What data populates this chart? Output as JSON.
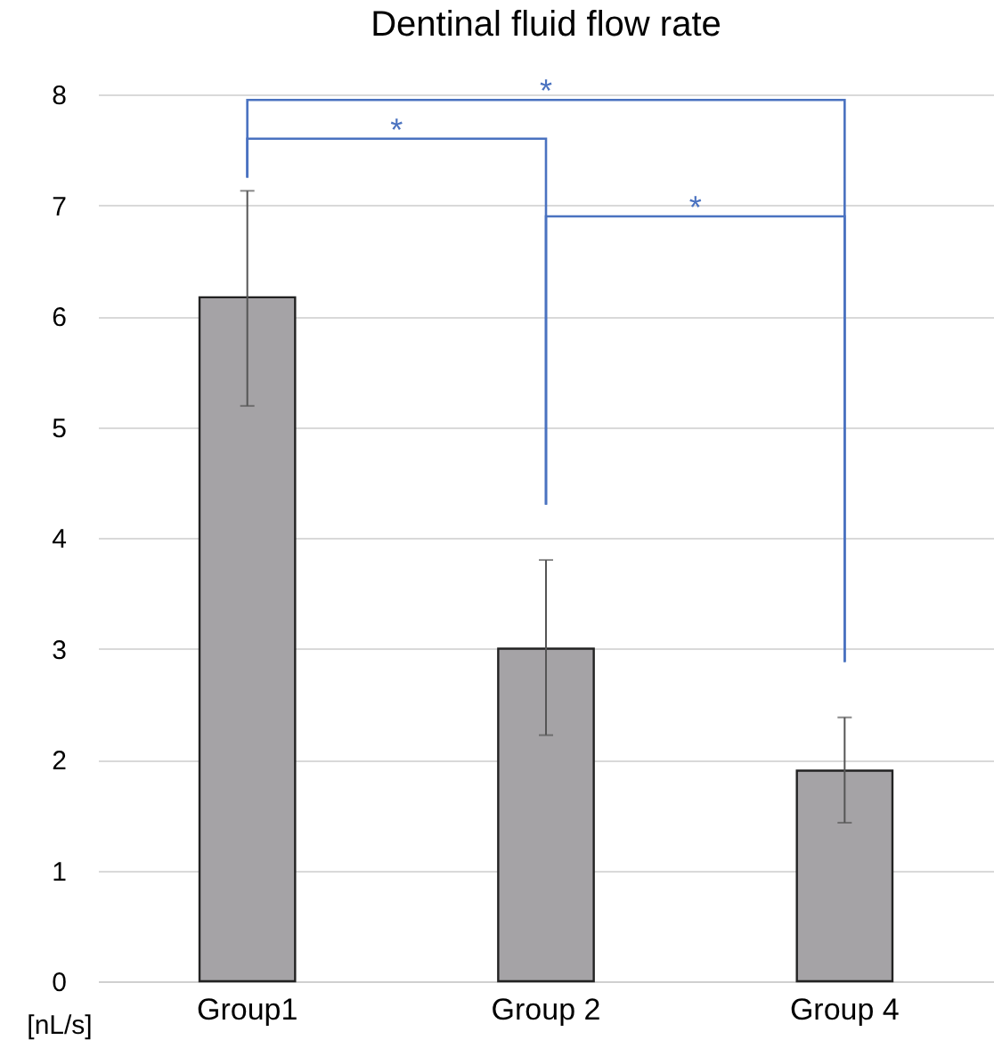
{
  "chart_data": {
    "type": "bar",
    "title": "Dentinal fluid flow rate",
    "ylabel": "[nL/s]",
    "categories": [
      "Group1",
      "Group 2",
      "Group 4"
    ],
    "values": [
      6.17,
      3.0,
      1.9
    ],
    "color": "#a5a3a6",
    "errors": [
      [
        5.19,
        7.13
      ],
      [
        2.22,
        3.8
      ],
      [
        1.43,
        2.38
      ]
    ],
    "ylim": [
      0,
      8
    ],
    "yticks": [
      0,
      1,
      2,
      3,
      4,
      5,
      6,
      7,
      8
    ],
    "grid": "y",
    "annotations": [
      "*",
      "*",
      "*"
    ]
  }
}
